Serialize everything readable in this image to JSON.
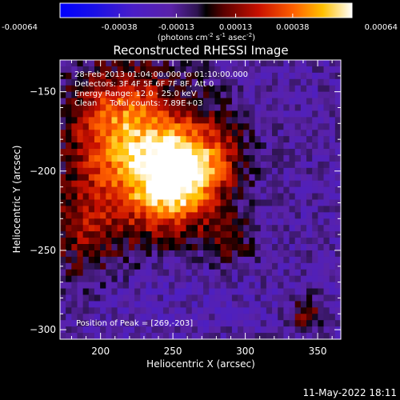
{
  "chart_data": {
    "type": "heatmap",
    "title": "Reconstructed RHESSI Image",
    "xlabel": "Heliocentric X (arcsec)",
    "ylabel": "Heliocentric Y (arcsec)",
    "xlim": [
      172,
      366
    ],
    "ylim": [
      -306,
      -130
    ],
    "x_ticks": [
      200,
      250,
      300,
      350
    ],
    "y_ticks": [
      -150,
      -200,
      -250,
      -300
    ],
    "colorbar": {
      "min": -0.00064,
      "max": 0.00064,
      "ticks": [
        "-0.00064",
        "-0.00038",
        "-0.00013",
        "0.00013",
        "0.00038",
        "0.00064"
      ],
      "label_main": "(photons cm",
      "label_exp1": "-2",
      "label_mid1": " s",
      "label_exp2": "-1",
      "label_mid2": " asec",
      "label_exp3": "-2",
      "label_end": ")"
    },
    "sources": [
      {
        "x": 252,
        "y": -206,
        "sx": 20,
        "sy": 20,
        "amp": 0.00066
      },
      {
        "x": 224,
        "y": -190,
        "sx": 32,
        "sy": 38,
        "amp": 0.00045
      },
      {
        "x": 212,
        "y": -168,
        "sx": 22,
        "sy": 20,
        "amp": 0.00024
      },
      {
        "x": 278,
        "y": -190,
        "sx": 18,
        "sy": 18,
        "amp": 0.00028
      },
      {
        "x": 290,
        "y": -244,
        "sx": 14,
        "sy": 12,
        "amp": 0.0002
      },
      {
        "x": 186,
        "y": -238,
        "sx": 18,
        "sy": 22,
        "amp": 0.00022
      },
      {
        "x": 345,
        "y": -290,
        "sx": 7,
        "sy": 7,
        "amp": 0.00032
      },
      {
        "x": 245,
        "y": -265,
        "sx": 40,
        "sy": 25,
        "amp": -6e-05
      }
    ],
    "background": -0.00016,
    "grid": false,
    "legend": "none",
    "peak": [
      269,
      -203
    ]
  },
  "annotations": {
    "line1": "28-Feb-2013 01:04:00.000 to 01:10:00.000",
    "line2": "Detectors: 3F 4F 5F 6F 7F 8F, Att 0",
    "line3": "Energy Range: 12.0 - 25.0 keV",
    "line4": "Clean     Total counts: 7.89E+03",
    "peak": "Position of Peak = [269,-203]"
  },
  "footer": {
    "timestamp": "11-May-2022 18:11"
  },
  "colors": {
    "background": "#000000",
    "text": "#ffffff",
    "axes": "#ffffff"
  }
}
